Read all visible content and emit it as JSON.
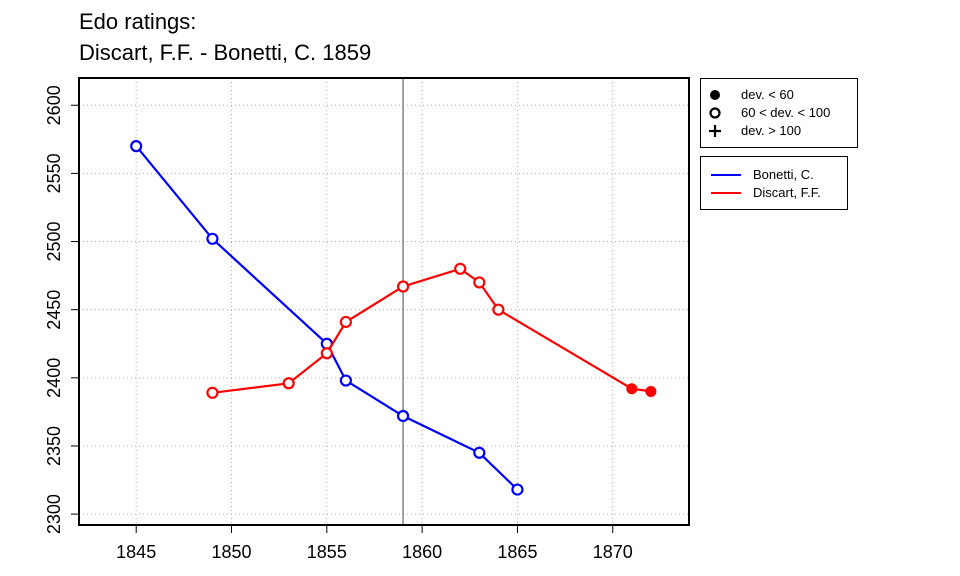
{
  "title_line1": "Edo ratings:",
  "title_line2": "Discart, F.F. - Bonetti, C. 1859",
  "legend_deviation": [
    {
      "label": "dev. < 60",
      "symbol": "filled-circle"
    },
    {
      "label": "60 < dev. < 100",
      "symbol": "open-circle"
    },
    {
      "label": "dev. > 100",
      "symbol": "plus"
    }
  ],
  "legend_series": [
    {
      "label": "Bonetti, C.",
      "color": "#0000ff"
    },
    {
      "label": "Discart, F.F.",
      "color": "#ff0000"
    }
  ],
  "chart_data": {
    "type": "line",
    "title": "Edo ratings:\nDiscart, F.F. - Bonetti, C. 1859",
    "xlabel": "",
    "ylabel": "",
    "xlim": [
      1842,
      1874
    ],
    "ylim": [
      2292,
      2620
    ],
    "xticks": [
      1845,
      1850,
      1855,
      1860,
      1865,
      1870
    ],
    "yticks": [
      2300,
      2350,
      2400,
      2450,
      2500,
      2550,
      2600
    ],
    "grid": true,
    "vline_x": 1859,
    "legend_position": "right",
    "series": [
      {
        "name": "Bonetti, C.",
        "color": "#0000ff",
        "points": [
          {
            "x": 1845,
            "y": 2570,
            "marker": "open"
          },
          {
            "x": 1849,
            "y": 2502,
            "marker": "open"
          },
          {
            "x": 1855,
            "y": 2425,
            "marker": "open"
          },
          {
            "x": 1856,
            "y": 2398,
            "marker": "open"
          },
          {
            "x": 1859,
            "y": 2372,
            "marker": "open"
          },
          {
            "x": 1863,
            "y": 2345,
            "marker": "open"
          },
          {
            "x": 1865,
            "y": 2318,
            "marker": "open"
          }
        ]
      },
      {
        "name": "Discart, F.F.",
        "color": "#ff0000",
        "points": [
          {
            "x": 1849,
            "y": 2389,
            "marker": "open"
          },
          {
            "x": 1853,
            "y": 2396,
            "marker": "open"
          },
          {
            "x": 1855,
            "y": 2418,
            "marker": "open"
          },
          {
            "x": 1856,
            "y": 2441,
            "marker": "open"
          },
          {
            "x": 1859,
            "y": 2467,
            "marker": "open"
          },
          {
            "x": 1862,
            "y": 2480,
            "marker": "open"
          },
          {
            "x": 1863,
            "y": 2470,
            "marker": "open"
          },
          {
            "x": 1864,
            "y": 2450,
            "marker": "open"
          },
          {
            "x": 1871,
            "y": 2392,
            "marker": "filled"
          },
          {
            "x": 1872,
            "y": 2390,
            "marker": "filled"
          }
        ]
      }
    ]
  }
}
